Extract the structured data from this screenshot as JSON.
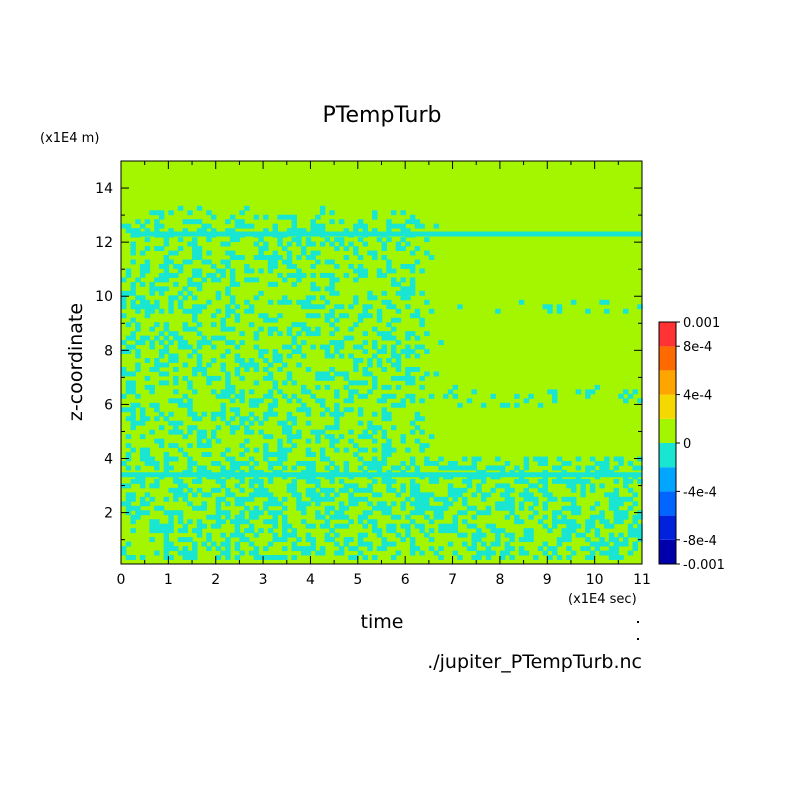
{
  "chart_data": {
    "type": "heatmap",
    "title": "PTempTurb",
    "xlabel": "time",
    "ylabel": "z-coordinate",
    "x_unit": "(x1E4 sec)",
    "y_unit": "(x1E4 m)",
    "xlim": [
      0,
      11
    ],
    "ylim": [
      0.1,
      15
    ],
    "x_ticks": [
      "0",
      "1",
      "2",
      "3",
      "4",
      "5",
      "6",
      "7",
      "8",
      "9",
      "10",
      "11"
    ],
    "y_ticks": [
      "2",
      "4",
      "6",
      "8",
      "10",
      "12",
      "14"
    ],
    "source_label": "./jupiter_PTempTurb.nc",
    "colorbar": {
      "labels": [
        "0.001",
        "8e-4",
        "4e-4",
        "0",
        "-4e-4",
        "-8e-4",
        "-0.001"
      ],
      "levels": [
        -0.001,
        -0.0008,
        -0.0006,
        -0.0004,
        -0.0002,
        0,
        0.0002,
        0.0004,
        0.0006,
        0.0008,
        0.001
      ],
      "colors": [
        "#0000aa",
        "#0022dd",
        "#0066ff",
        "#00a6ff",
        "#19e6d2",
        "#a4f500",
        "#f5d800",
        "#ffa500",
        "#ff6a00",
        "#ee2222",
        "#ff3333"
      ]
    },
    "colors": {
      "background_field": "#a4f500",
      "negative_anomaly": "#19e6d2"
    },
    "notable_features": [
      {
        "desc": "persistent negative band",
        "z": 12.3,
        "t_range": [
          0.2,
          11
        ]
      },
      {
        "desc": "persistent negative band",
        "z": 3.4,
        "t_range": [
          0,
          11
        ]
      },
      {
        "desc": "turbulent region upper",
        "z_range": [
          4,
          13.3
        ],
        "t_range": [
          0,
          6.8
        ]
      },
      {
        "desc": "turbulent region lower",
        "z_range": [
          0.2,
          4
        ],
        "t_range": [
          0,
          11
        ]
      }
    ]
  }
}
